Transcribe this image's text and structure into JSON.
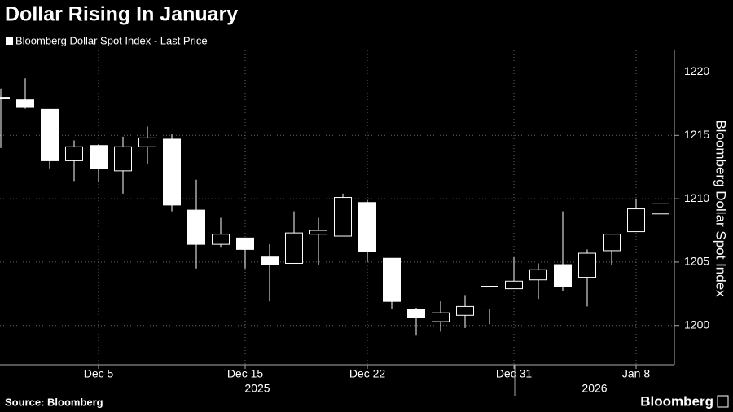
{
  "chart_data": {
    "type": "candlestick",
    "title": "Dollar Rising In January",
    "legend_label": "Bloomberg Dollar Spot Index - Last Price",
    "y_axis_label": "Bloomberg Dollar Spot Index",
    "source": "Source: Bloomberg",
    "brand": "Bloomberg",
    "year_labels": [
      {
        "label": "2025",
        "index": 10.5
      },
      {
        "label": "2026",
        "index": 24.3
      }
    ],
    "categories": [
      null,
      null,
      null,
      null,
      "Dec 5",
      null,
      null,
      null,
      null,
      null,
      "Dec 15",
      null,
      null,
      null,
      null,
      "Dec 22",
      null,
      null,
      null,
      null,
      null,
      "Dec 31",
      null,
      null,
      null,
      null,
      "Jan 8",
      null
    ],
    "open": [
      1218.0,
      1217.8,
      1217.05,
      1213.0,
      1214.2,
      1212.2,
      1214.1,
      1214.7,
      1209.1,
      1206.4,
      1206.9,
      1205.4,
      1204.9,
      1207.2,
      1207.05,
      1209.7,
      1205.3,
      1201.3,
      1200.3,
      1200.8,
      1201.3,
      1202.9,
      1203.6,
      1204.8,
      1203.8,
      1205.9,
      1207.4,
      1208.8
    ],
    "high": [
      1218.7,
      1219.5,
      1217.05,
      1214.6,
      1214.3,
      1214.9,
      1215.7,
      1215.1,
      1211.5,
      1208.5,
      1206.9,
      1206.4,
      1209.0,
      1208.5,
      1210.4,
      1209.9,
      1205.3,
      1201.4,
      1201.9,
      1202.4,
      1203.1,
      1205.4,
      1204.9,
      1209.0,
      1206.0,
      1207.2,
      1210.0,
      1209.6
    ],
    "low": [
      1214.0,
      1217.1,
      1212.4,
      1211.4,
      1211.3,
      1210.4,
      1212.7,
      1209.0,
      1204.5,
      1206.2,
      1204.5,
      1201.9,
      1204.9,
      1204.8,
      1207.05,
      1205.0,
      1201.3,
      1199.2,
      1199.5,
      1199.8,
      1200.1,
      1202.9,
      1202.1,
      1202.7,
      1201.5,
      1204.8,
      1207.4,
      1208.8
    ],
    "close": [
      1217.95,
      1217.2,
      1213.0,
      1214.1,
      1212.4,
      1214.1,
      1214.8,
      1209.5,
      1206.4,
      1207.2,
      1206.0,
      1204.8,
      1207.3,
      1207.5,
      1210.1,
      1205.8,
      1201.9,
      1200.6,
      1201.0,
      1201.5,
      1203.1,
      1203.5,
      1204.4,
      1203.1,
      1205.7,
      1207.2,
      1209.2,
      1209.6
    ],
    "color": "#ffffff",
    "ylim": [
      1196.9,
      1221.7
    ],
    "yticks": [
      1200,
      1205,
      1210,
      1215,
      1220
    ],
    "grid": true
  }
}
